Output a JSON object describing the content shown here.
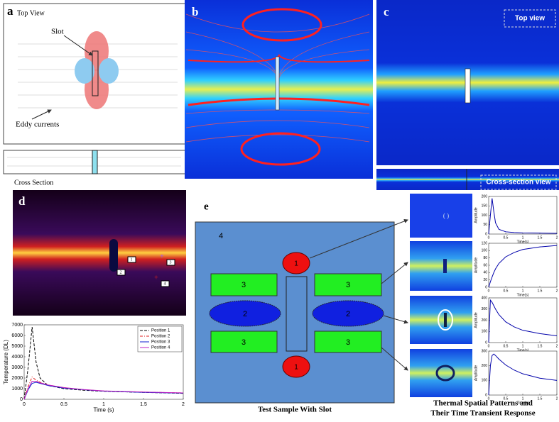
{
  "panels": {
    "a": {
      "label": "a",
      "title": "Top View",
      "slot": "Slot",
      "eddy": "Eddy currents",
      "cross_section": "Cross Section"
    },
    "b": {
      "label": "b"
    },
    "c": {
      "label": "c",
      "top_view": "Top view",
      "cross_view": "Cross-section view"
    },
    "d": {
      "label": "d",
      "positions": [
        "1",
        "2",
        "3",
        "4"
      ]
    },
    "e": {
      "label": "e",
      "sample": "4",
      "heater_top": "1",
      "heater_bottom": "1",
      "block_tl": "3",
      "block_tr": "3",
      "block_bl": "3",
      "block_br": "3",
      "ellipse_left": "2",
      "ellipse_right": "2",
      "caption": "Test Sample With Slot",
      "right_caption": [
        "Thermal Spatial Patterns and",
        "Their Time Transient Response"
      ]
    }
  },
  "chart_data": [
    {
      "type": "line",
      "xlabel": "Time (s)",
      "ylabel": "Temperature (DL)",
      "x": [
        0,
        0.05,
        0.1,
        0.15,
        0.2,
        0.3,
        0.5,
        0.75,
        1,
        1.5,
        2
      ],
      "series": [
        {
          "name": "Position 1",
          "color": "#000000",
          "dash": "4,2",
          "values": [
            0,
            3000,
            6800,
            3500,
            2000,
            1300,
            1000,
            850,
            750,
            650,
            560
          ]
        },
        {
          "name": "Position 2",
          "color": "#e02020",
          "dash": "4,2,1,2",
          "values": [
            0,
            1200,
            2100,
            1800,
            1600,
            1350,
            1100,
            900,
            780,
            680,
            600
          ]
        },
        {
          "name": "Position 3",
          "color": "#1020d0",
          "values": [
            0,
            900,
            1500,
            1600,
            1500,
            1300,
            1050,
            900,
            770,
            650,
            580
          ]
        },
        {
          "name": "Position 4",
          "color": "#c020c0",
          "values": [
            0,
            1000,
            1700,
            1700,
            1550,
            1350,
            1100,
            920,
            790,
            680,
            600
          ]
        }
      ],
      "xlim": [
        0,
        2
      ],
      "ylim": [
        0,
        7000
      ],
      "xticks": [
        0,
        0.5,
        1,
        1.5,
        2
      ],
      "yticks": [
        0,
        1000,
        2000,
        3000,
        4000,
        5000,
        6000,
        7000
      ],
      "legend": "upper right"
    },
    {
      "type": "line",
      "xlabel": "Time(s)",
      "ylabel": "Amplitude",
      "x": [
        0,
        0.05,
        0.1,
        0.15,
        0.2,
        0.3,
        0.5,
        0.75,
        1,
        1.5,
        2
      ],
      "series": [
        {
          "color": "#0000aa",
          "values": [
            0,
            100,
            190,
            120,
            60,
            25,
            12,
            8,
            6,
            5,
            4
          ]
        }
      ],
      "xlim": [
        0,
        2
      ],
      "ylim": [
        0,
        200
      ],
      "xticks": [
        0,
        0.5,
        1,
        1.5,
        2
      ],
      "yticks": [
        0,
        50,
        100,
        150,
        200
      ]
    },
    {
      "type": "line",
      "xlabel": "Time(s)",
      "ylabel": "Amplitude",
      "x": [
        0,
        0.05,
        0.1,
        0.15,
        0.2,
        0.3,
        0.5,
        0.75,
        1,
        1.5,
        2
      ],
      "series": [
        {
          "color": "#0000aa",
          "values": [
            0,
            15,
            28,
            40,
            50,
            65,
            83,
            95,
            103,
            110,
            114
          ]
        }
      ],
      "xlim": [
        0,
        2
      ],
      "ylim": [
        0,
        120
      ],
      "xticks": [
        0,
        0.5,
        1,
        1.5,
        2
      ],
      "yticks": [
        0,
        20,
        40,
        60,
        80,
        100,
        120
      ]
    },
    {
      "type": "line",
      "xlabel": "Time(s)",
      "ylabel": "Amplitude",
      "x": [
        0,
        0.05,
        0.1,
        0.15,
        0.2,
        0.3,
        0.5,
        0.75,
        1,
        1.5,
        2
      ],
      "series": [
        {
          "color": "#0000aa",
          "values": [
            0,
            380,
            360,
            330,
            300,
            250,
            185,
            140,
            110,
            80,
            60
          ]
        }
      ],
      "xlim": [
        0,
        2
      ],
      "ylim": [
        0,
        400
      ],
      "xticks": [
        0,
        0.5,
        1,
        1.5,
        2
      ],
      "yticks": [
        0,
        100,
        200,
        300,
        400
      ]
    },
    {
      "type": "line",
      "xlabel": "Time(s)",
      "ylabel": "Amplitude",
      "x": [
        0,
        0.05,
        0.1,
        0.15,
        0.2,
        0.3,
        0.5,
        0.75,
        1,
        1.5,
        2
      ],
      "series": [
        {
          "color": "#0000aa",
          "values": [
            0,
            200,
            270,
            280,
            270,
            245,
            205,
            170,
            145,
            115,
            100
          ]
        }
      ],
      "xlim": [
        0,
        2
      ],
      "ylim": [
        0,
        300
      ],
      "xticks": [
        0,
        0.5,
        1,
        1.5,
        2
      ],
      "yticks": [
        0,
        100,
        200,
        300
      ]
    }
  ]
}
